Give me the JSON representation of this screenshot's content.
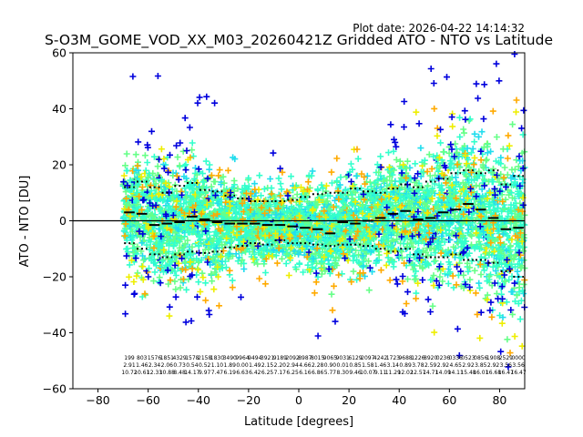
{
  "chart_data": {
    "type": "scatter",
    "title": "S-O3M_GOME_VOD_XX_M03_20260421Z Gridded ATO - NTO vs Latitude",
    "plot_date": "Plot date: 2026-04-22 14:14:32",
    "xlabel": "Latitude [degrees]",
    "ylabel": "ATO - NTO [DU]",
    "xlim": [
      -90,
      90
    ],
    "ylim": [
      -60,
      60
    ],
    "xticks": [
      -80,
      -60,
      -40,
      -20,
      0,
      20,
      40,
      60,
      80
    ],
    "xtick_labels": [
      "−80",
      "−60",
      "−40",
      "−20",
      "0",
      "20",
      "40",
      "60",
      "80"
    ],
    "yticks": [
      -60,
      -40,
      -20,
      0,
      20,
      40,
      60
    ],
    "ytick_labels": [
      "−60",
      "−40",
      "−20",
      "0",
      "20",
      "40",
      "60"
    ],
    "grid": false,
    "zero_line": 0,
    "bin_width": 5,
    "colors": {
      "cyan": "#22ddee",
      "aquamarine": "#33ffcc",
      "light_green": "#66ff88",
      "yellow": "#eeee00",
      "orange": "#ffaa00",
      "blue": "#0000dd",
      "mean_line": "#000000"
    },
    "series": [
      {
        "name": "bin_mean",
        "x": [
          -67.5,
          -62.5,
          -57.5,
          -52.5,
          -47.5,
          -42.5,
          -37.5,
          -32.5,
          -27.5,
          -22.5,
          -17.5,
          -12.5,
          -7.5,
          -2.5,
          2.5,
          7.5,
          12.5,
          17.5,
          22.5,
          27.5,
          32.5,
          37.5,
          42.5,
          47.5,
          52.5,
          57.5,
          62.5,
          67.5,
          72.5,
          77.5,
          82.5,
          87.5
        ],
        "values": [
          3.0,
          2.5,
          -1.5,
          -1.0,
          -0.5,
          1.5,
          0.5,
          -0.5,
          -1.0,
          -1.0,
          -1.0,
          -1.5,
          -1.5,
          -2.0,
          -2.5,
          -3.0,
          -4.5,
          -0.5,
          -1.0,
          0.0,
          1.0,
          2.5,
          3.5,
          0.5,
          1.0,
          3.0,
          4.0,
          6.0,
          4.0,
          1.0,
          -3.0,
          -2.5
        ]
      },
      {
        "name": "upper_spread",
        "x": [
          -67.5,
          -62.5,
          -57.5,
          -52.5,
          -47.5,
          -42.5,
          -37.5,
          -32.5,
          -27.5,
          -22.5,
          -17.5,
          -12.5,
          -7.5,
          -2.5,
          2.5,
          7.5,
          12.5,
          17.5,
          22.5,
          27.5,
          32.5,
          37.5,
          42.5,
          47.5,
          52.5,
          57.5,
          62.5,
          67.5,
          72.5,
          77.5,
          82.5,
          87.5
        ],
        "values": [
          12.0,
          14.0,
          12.0,
          10.0,
          12.5,
          13.5,
          11.0,
          10.5,
          9.0,
          8.0,
          7.0,
          7.0,
          7.0,
          7.5,
          8.5,
          9.5,
          10.0,
          10.0,
          11.5,
          10.5,
          10.0,
          11.5,
          13.0,
          12.0,
          14.0,
          15.0,
          17.0,
          18.0,
          17.0,
          18.0,
          13.0,
          16.0
        ]
      },
      {
        "name": "lower_spread",
        "x": [
          -67.5,
          -62.5,
          -57.5,
          -52.5,
          -47.5,
          -42.5,
          -37.5,
          -32.5,
          -27.5,
          -22.5,
          -17.5,
          -12.5,
          -7.5,
          -2.5,
          2.5,
          7.5,
          12.5,
          17.5,
          22.5,
          27.5,
          32.5,
          37.5,
          42.5,
          47.5,
          52.5,
          57.5,
          62.5,
          67.5,
          72.5,
          77.5,
          82.5,
          87.5
        ],
        "values": [
          -8.0,
          -10.0,
          -12.0,
          -13.0,
          -12.0,
          -11.0,
          -11.5,
          -11.0,
          -9.5,
          -9.0,
          -8.0,
          -8.5,
          -7.0,
          -8.0,
          -8.0,
          -8.5,
          -9.0,
          -8.5,
          -8.5,
          -9.0,
          -10.0,
          -11.0,
          -10.0,
          -12.0,
          -13.0,
          -13.0,
          -12.0,
          -14.0,
          -14.0,
          -15.0,
          -18.0,
          -20.0
        ]
      }
    ],
    "bin_stats": {
      "x": [
        -67.5,
        -62.5,
        -57.5,
        -52.5,
        -47.5,
        -42.5,
        -37.5,
        -32.5,
        -27.5,
        -22.5,
        -17.5,
        -12.5,
        -7.5,
        -2.5,
        2.5,
        7.5,
        12.5,
        17.5,
        22.5,
        27.5,
        32.5,
        37.5,
        42.5,
        47.5,
        52.5,
        57.5,
        62.5,
        67.5,
        72.5,
        77.5,
        82.5,
        87.5
      ],
      "count": [
        "199",
        "803",
        "1576",
        "1851",
        "4329",
        "1578",
        "2158",
        "1830",
        "3490",
        "9964",
        "9494",
        "3921",
        "9189",
        "2092",
        "8987",
        "8015",
        "9065",
        "9031",
        "6129",
        "2097",
        "4242",
        "1723",
        "9688",
        "1226",
        "8920",
        "0236",
        "0336",
        "0523",
        "0856",
        "1908",
        "2529",
        "0000"
      ],
      "mean": [
        "2.91",
        "1.46",
        "2.34",
        "2.06",
        "0.73",
        "0.54",
        "0.52",
        "1.10",
        "1.89",
        "0.00",
        "1.49",
        "2.15",
        "2.20",
        "2.94",
        "4.66",
        "2.28",
        "0.90",
        "0.01",
        "0.85",
        "1.58",
        "1.46",
        "3.14",
        "0.89",
        "3.78",
        "2.59",
        "2.92",
        "4.65",
        "2.92",
        "3.85",
        "2.92",
        "3.56",
        "3.56"
      ],
      "std": [
        "10.72",
        "10.61",
        "12.33",
        "10.88",
        "8.48",
        "14.17",
        "9.97",
        "7.47",
        "6.19",
        "6.63",
        "6.42",
        "6.25",
        "7.17",
        "6.25",
        "6.16",
        "6.86",
        "5.77",
        "8.30",
        "9.46",
        "10.07",
        "9.11",
        "11.29",
        "12.02",
        "12.57",
        "14.71",
        "14.09",
        "14.11",
        "15.48",
        "16.01",
        "16.68",
        "16.47",
        "16.47"
      ]
    },
    "scatter_note": "dense clouds of plus markers per latitude column; colors encode number of observations"
  }
}
